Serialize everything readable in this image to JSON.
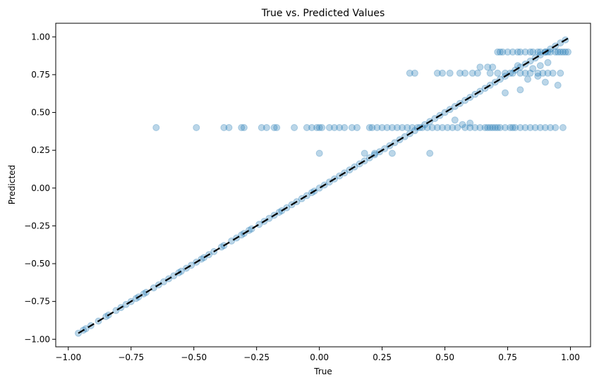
{
  "chart_data": {
    "type": "scatter",
    "title": "True vs. Predicted Values",
    "xlabel": "True",
    "ylabel": "Predicted",
    "xlim": [
      -1.05,
      1.08
    ],
    "ylim": [
      -1.05,
      1.09
    ],
    "xticks": [
      -1.0,
      -0.75,
      -0.5,
      -0.25,
      0.0,
      0.25,
      0.5,
      0.75,
      1.0
    ],
    "xtick_labels": [
      "−1.00",
      "−0.75",
      "−0.50",
      "−0.25",
      "0.00",
      "0.25",
      "0.50",
      "0.75",
      "1.00"
    ],
    "yticks": [
      -1.0,
      -0.75,
      -0.5,
      -0.25,
      0.0,
      0.25,
      0.5,
      0.75,
      1.0
    ],
    "ytick_labels": [
      "−1.00",
      "−0.75",
      "−0.50",
      "−0.25",
      "0.00",
      "0.25",
      "0.50",
      "0.75",
      "1.00"
    ],
    "grid": false,
    "point_color": "#1f77b4",
    "point_alpha": 0.3,
    "reference_line": {
      "style": "dashed",
      "color": "#000000",
      "from": [
        -0.96,
        -0.96
      ],
      "to": [
        0.99,
        0.99
      ]
    },
    "series": [
      {
        "points": [
          [
            -0.96,
            -0.96
          ],
          [
            -0.94,
            -0.94
          ],
          [
            -0.93,
            -0.93
          ],
          [
            -0.91,
            -0.91
          ],
          [
            -0.88,
            -0.88
          ],
          [
            -0.85,
            -0.85
          ],
          [
            -0.84,
            -0.84
          ],
          [
            -0.81,
            -0.81
          ],
          [
            -0.79,
            -0.79
          ],
          [
            -0.77,
            -0.77
          ],
          [
            -0.75,
            -0.75
          ],
          [
            -0.73,
            -0.73
          ],
          [
            -0.72,
            -0.72
          ],
          [
            -0.7,
            -0.7
          ],
          [
            -0.69,
            -0.69
          ],
          [
            -0.66,
            -0.66
          ],
          [
            -0.64,
            -0.64
          ],
          [
            -0.62,
            -0.62
          ],
          [
            -0.6,
            -0.6
          ],
          [
            -0.58,
            -0.58
          ],
          [
            -0.56,
            -0.56
          ],
          [
            -0.55,
            -0.55
          ],
          [
            -0.53,
            -0.53
          ],
          [
            -0.51,
            -0.51
          ],
          [
            -0.49,
            -0.49
          ],
          [
            -0.47,
            -0.47
          ],
          [
            -0.46,
            -0.46
          ],
          [
            -0.44,
            -0.44
          ],
          [
            -0.42,
            -0.42
          ],
          [
            -0.39,
            -0.39
          ],
          [
            -0.38,
            -0.38
          ],
          [
            -0.35,
            -0.35
          ],
          [
            -0.33,
            -0.33
          ],
          [
            -0.31,
            -0.31
          ],
          [
            -0.3,
            -0.3
          ],
          [
            -0.28,
            -0.28
          ],
          [
            -0.27,
            -0.27
          ],
          [
            -0.24,
            -0.24
          ],
          [
            -0.22,
            -0.22
          ],
          [
            -0.2,
            -0.2
          ],
          [
            -0.18,
            -0.18
          ],
          [
            -0.16,
            -0.16
          ],
          [
            -0.15,
            -0.15
          ],
          [
            -0.13,
            -0.13
          ],
          [
            -0.11,
            -0.11
          ],
          [
            -0.09,
            -0.09
          ],
          [
            -0.07,
            -0.07
          ],
          [
            -0.05,
            -0.05
          ],
          [
            -0.03,
            -0.03
          ],
          [
            -0.02,
            -0.02
          ],
          [
            0.0,
            0.0
          ],
          [
            0.02,
            0.02
          ],
          [
            0.04,
            0.04
          ],
          [
            0.06,
            0.06
          ],
          [
            0.08,
            0.08
          ],
          [
            0.1,
            0.1
          ],
          [
            0.12,
            0.12
          ],
          [
            0.14,
            0.14
          ],
          [
            0.16,
            0.16
          ],
          [
            0.18,
            0.18
          ],
          [
            0.2,
            0.2
          ],
          [
            0.22,
            0.22
          ],
          [
            0.24,
            0.24
          ],
          [
            0.26,
            0.26
          ],
          [
            0.28,
            0.28
          ],
          [
            0.3,
            0.3
          ],
          [
            0.32,
            0.32
          ],
          [
            0.34,
            0.34
          ],
          [
            0.36,
            0.36
          ],
          [
            0.38,
            0.38
          ],
          [
            0.4,
            0.4
          ],
          [
            0.42,
            0.42
          ],
          [
            0.44,
            0.44
          ],
          [
            0.46,
            0.46
          ],
          [
            0.48,
            0.48
          ],
          [
            0.5,
            0.5
          ],
          [
            0.52,
            0.52
          ],
          [
            0.54,
            0.54
          ],
          [
            0.56,
            0.56
          ],
          [
            0.58,
            0.58
          ],
          [
            0.6,
            0.6
          ],
          [
            0.62,
            0.62
          ],
          [
            0.64,
            0.64
          ],
          [
            0.66,
            0.66
          ],
          [
            0.68,
            0.68
          ],
          [
            0.7,
            0.7
          ],
          [
            0.72,
            0.72
          ],
          [
            0.74,
            0.74
          ],
          [
            0.76,
            0.76
          ],
          [
            0.78,
            0.78
          ],
          [
            0.8,
            0.8
          ],
          [
            0.82,
            0.82
          ],
          [
            0.84,
            0.84
          ],
          [
            0.86,
            0.86
          ],
          [
            0.88,
            0.88
          ],
          [
            0.9,
            0.9
          ],
          [
            0.92,
            0.92
          ],
          [
            0.94,
            0.94
          ],
          [
            0.96,
            0.96
          ],
          [
            0.98,
            0.98
          ],
          [
            -0.65,
            0.4
          ],
          [
            -0.49,
            0.4
          ],
          [
            -0.38,
            0.4
          ],
          [
            -0.36,
            0.4
          ],
          [
            -0.31,
            0.4
          ],
          [
            -0.3,
            0.4
          ],
          [
            -0.23,
            0.4
          ],
          [
            -0.21,
            0.4
          ],
          [
            -0.18,
            0.4
          ],
          [
            -0.17,
            0.4
          ],
          [
            -0.1,
            0.4
          ],
          [
            -0.05,
            0.4
          ],
          [
            -0.03,
            0.4
          ],
          [
            -0.01,
            0.4
          ],
          [
            0.0,
            0.4
          ],
          [
            0.01,
            0.4
          ],
          [
            0.04,
            0.4
          ],
          [
            0.06,
            0.4
          ],
          [
            0.08,
            0.4
          ],
          [
            0.1,
            0.4
          ],
          [
            0.13,
            0.4
          ],
          [
            0.15,
            0.4
          ],
          [
            0.2,
            0.4
          ],
          [
            0.21,
            0.4
          ],
          [
            0.23,
            0.4
          ],
          [
            0.25,
            0.4
          ],
          [
            0.27,
            0.4
          ],
          [
            0.29,
            0.4
          ],
          [
            0.31,
            0.4
          ],
          [
            0.33,
            0.4
          ],
          [
            0.35,
            0.4
          ],
          [
            0.37,
            0.4
          ],
          [
            0.39,
            0.4
          ],
          [
            0.41,
            0.4
          ],
          [
            0.43,
            0.4
          ],
          [
            0.45,
            0.4
          ],
          [
            0.47,
            0.4
          ],
          [
            0.49,
            0.4
          ],
          [
            0.51,
            0.4
          ],
          [
            0.53,
            0.4
          ],
          [
            0.55,
            0.4
          ],
          [
            0.58,
            0.4
          ],
          [
            0.6,
            0.4
          ],
          [
            0.62,
            0.4
          ],
          [
            0.64,
            0.4
          ],
          [
            0.66,
            0.4
          ],
          [
            0.67,
            0.4
          ],
          [
            0.68,
            0.4
          ],
          [
            0.69,
            0.4
          ],
          [
            0.7,
            0.4
          ],
          [
            0.71,
            0.4
          ],
          [
            0.72,
            0.4
          ],
          [
            0.74,
            0.4
          ],
          [
            0.76,
            0.4
          ],
          [
            0.77,
            0.4
          ],
          [
            0.78,
            0.4
          ],
          [
            0.8,
            0.4
          ],
          [
            0.82,
            0.4
          ],
          [
            0.84,
            0.4
          ],
          [
            0.86,
            0.4
          ],
          [
            0.88,
            0.4
          ],
          [
            0.9,
            0.4
          ],
          [
            0.92,
            0.4
          ],
          [
            0.94,
            0.4
          ],
          [
            0.97,
            0.4
          ],
          [
            0.0,
            0.23
          ],
          [
            0.18,
            0.23
          ],
          [
            0.22,
            0.23
          ],
          [
            0.29,
            0.23
          ],
          [
            0.44,
            0.23
          ],
          [
            0.54,
            0.45
          ],
          [
            0.57,
            0.42
          ],
          [
            0.6,
            0.43
          ],
          [
            0.36,
            0.76
          ],
          [
            0.38,
            0.76
          ],
          [
            0.47,
            0.76
          ],
          [
            0.49,
            0.76
          ],
          [
            0.52,
            0.76
          ],
          [
            0.56,
            0.76
          ],
          [
            0.58,
            0.76
          ],
          [
            0.61,
            0.76
          ],
          [
            0.63,
            0.76
          ],
          [
            0.68,
            0.76
          ],
          [
            0.71,
            0.76
          ],
          [
            0.74,
            0.76
          ],
          [
            0.77,
            0.76
          ],
          [
            0.8,
            0.76
          ],
          [
            0.82,
            0.76
          ],
          [
            0.84,
            0.76
          ],
          [
            0.87,
            0.76
          ],
          [
            0.89,
            0.76
          ],
          [
            0.91,
            0.76
          ],
          [
            0.93,
            0.76
          ],
          [
            0.96,
            0.76
          ],
          [
            0.64,
            0.8
          ],
          [
            0.67,
            0.8
          ],
          [
            0.69,
            0.8
          ],
          [
            0.79,
            0.81
          ],
          [
            0.85,
            0.79
          ],
          [
            0.88,
            0.81
          ],
          [
            0.91,
            0.83
          ],
          [
            0.83,
            0.72
          ],
          [
            0.87,
            0.74
          ],
          [
            0.9,
            0.7
          ],
          [
            0.95,
            0.68
          ],
          [
            0.8,
            0.65
          ],
          [
            0.74,
            0.63
          ],
          [
            0.71,
            0.9
          ],
          [
            0.72,
            0.9
          ],
          [
            0.73,
            0.9
          ],
          [
            0.75,
            0.9
          ],
          [
            0.77,
            0.9
          ],
          [
            0.79,
            0.9
          ],
          [
            0.8,
            0.9
          ],
          [
            0.82,
            0.9
          ],
          [
            0.84,
            0.9
          ],
          [
            0.85,
            0.9
          ],
          [
            0.87,
            0.9
          ],
          [
            0.88,
            0.9
          ],
          [
            0.9,
            0.9
          ],
          [
            0.91,
            0.9
          ],
          [
            0.92,
            0.9
          ],
          [
            0.94,
            0.9
          ],
          [
            0.95,
            0.9
          ],
          [
            0.96,
            0.9
          ],
          [
            0.97,
            0.9
          ],
          [
            0.98,
            0.9
          ],
          [
            0.99,
            0.9
          ]
        ]
      }
    ]
  }
}
